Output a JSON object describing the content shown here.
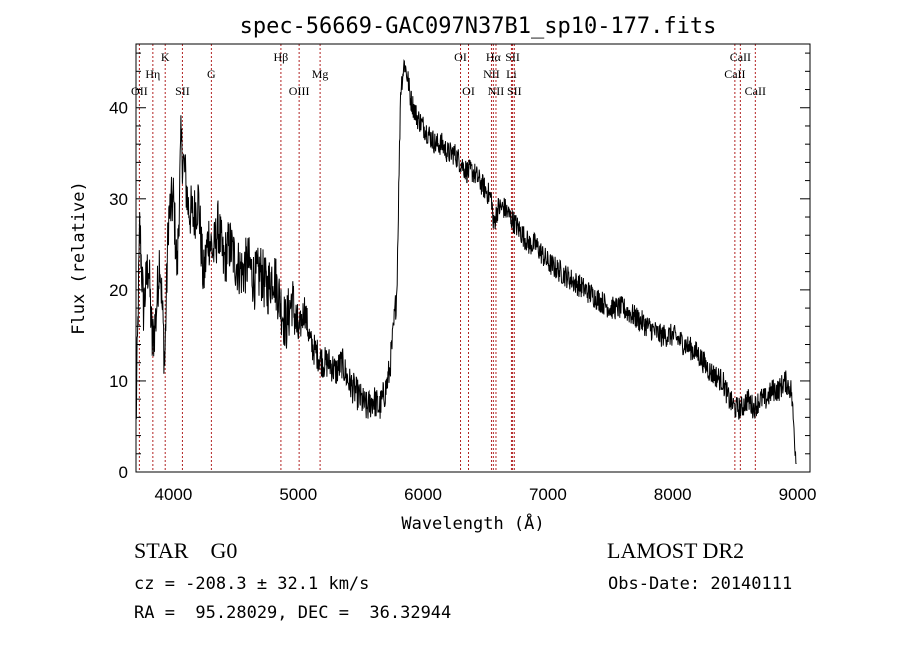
{
  "chart_data": {
    "type": "line",
    "title": "spec-56669-GAC097N37B1_sp10-177.fits",
    "xlabel": "Wavelength (Å)",
    "ylabel": "Flux (relative)",
    "xlim": [
      3700,
      9100
    ],
    "ylim": [
      0,
      47
    ],
    "xticks": [
      4000,
      5000,
      6000,
      7000,
      8000,
      9000
    ],
    "yticks": [
      0,
      10,
      20,
      30,
      40
    ],
    "minor_xtick_step": 200,
    "minor_ytick_step": 2,
    "grid": false,
    "line_color": "#000000",
    "marker_color": "#b22222",
    "series": [
      {
        "x": [
          3700,
          3730,
          3760,
          3800,
          3830,
          3860,
          3890,
          3930,
          3960,
          4000,
          4030,
          4060,
          4090,
          4120,
          4160,
          4200,
          4240,
          4280,
          4320,
          4360,
          4400,
          4450,
          4500,
          4550,
          4600,
          4650,
          4700,
          4750,
          4800,
          4850,
          4900,
          4950,
          5000,
          5050,
          5100,
          5150,
          5200,
          5250,
          5300,
          5350,
          5400,
          5450,
          5500,
          5550,
          5600,
          5650,
          5700,
          5730,
          5760,
          5790,
          5820,
          5850,
          5880,
          5900,
          5950,
          6000,
          6050,
          6100,
          6150,
          6200,
          6250,
          6300,
          6350,
          6400,
          6450,
          6500,
          6550,
          6563,
          6580,
          6600,
          6650,
          6700,
          6750,
          6800,
          6850,
          6900,
          6950,
          7000,
          7100,
          7200,
          7300,
          7400,
          7500,
          7600,
          7700,
          7800,
          7900,
          8000,
          8100,
          8200,
          8300,
          8400,
          8450,
          8500,
          8550,
          8600,
          8650,
          8700,
          8750,
          8800,
          8850,
          8900,
          8950,
          8990
        ],
        "y": [
          5,
          27,
          18,
          23,
          14,
          17,
          24,
          12,
          28,
          30,
          22,
          36,
          33,
          29,
          28,
          30,
          21,
          26,
          24,
          27,
          23,
          25,
          23,
          22,
          23,
          21,
          22,
          20,
          22,
          19,
          16,
          19,
          15,
          18,
          14,
          13,
          12,
          12,
          11,
          12,
          10,
          9,
          8,
          7,
          8,
          7,
          9,
          11,
          15,
          20,
          42,
          45,
          43,
          41,
          39,
          38,
          37,
          36,
          36,
          35,
          35,
          34,
          33,
          33,
          32,
          31,
          30,
          27,
          28,
          29,
          29,
          28,
          27,
          26,
          25,
          25,
          24,
          23,
          22,
          21,
          20,
          19,
          18,
          18,
          17,
          16,
          15,
          15,
          14,
          13,
          11,
          10,
          8,
          7,
          7,
          8,
          7,
          8,
          8,
          9,
          9,
          10,
          9,
          1
        ]
      }
    ],
    "spectral_lines": [
      {
        "label": "OII",
        "x": 3727,
        "row": 3
      },
      {
        "label": "Hη",
        "x": 3835,
        "row": 2
      },
      {
        "label": "K",
        "x": 3934,
        "row": 1
      },
      {
        "label": "SII",
        "x": 4072,
        "row": 3
      },
      {
        "label": "G",
        "x": 4304,
        "row": 2
      },
      {
        "label": "Hβ",
        "x": 4861,
        "row": 1
      },
      {
        "label": "OIII",
        "x": 5007,
        "row": 3
      },
      {
        "label": "Mg",
        "x": 5175,
        "row": 2
      },
      {
        "label": "OI",
        "x": 6300,
        "row": 1
      },
      {
        "label": "OI",
        "x": 6364,
        "row": 3
      },
      {
        "label": "Hα",
        "x": 6563,
        "row": 1
      },
      {
        "label": "NII",
        "x": 6548,
        "row": 2
      },
      {
        "label": "NII",
        "x": 6584,
        "row": 3
      },
      {
        "label": "SII",
        "x": 6717,
        "row": 1
      },
      {
        "label": "Li",
        "x": 6708,
        "row": 2
      },
      {
        "label": "SII",
        "x": 6731,
        "row": 3
      },
      {
        "label": "CaII",
        "x": 8498,
        "row": 2
      },
      {
        "label": "CaII",
        "x": 8542,
        "row": 1
      },
      {
        "label": "CaII",
        "x": 8662,
        "row": 3
      }
    ]
  },
  "footer": {
    "star_line": "STAR    G0",
    "survey": "LAMOST DR2",
    "cz_line": "cz = -208.3 ± 32.1 km/s",
    "obs_line": "Obs-Date: 20140111",
    "radec_line": "RA =  95.28029, DEC =  36.32944"
  }
}
